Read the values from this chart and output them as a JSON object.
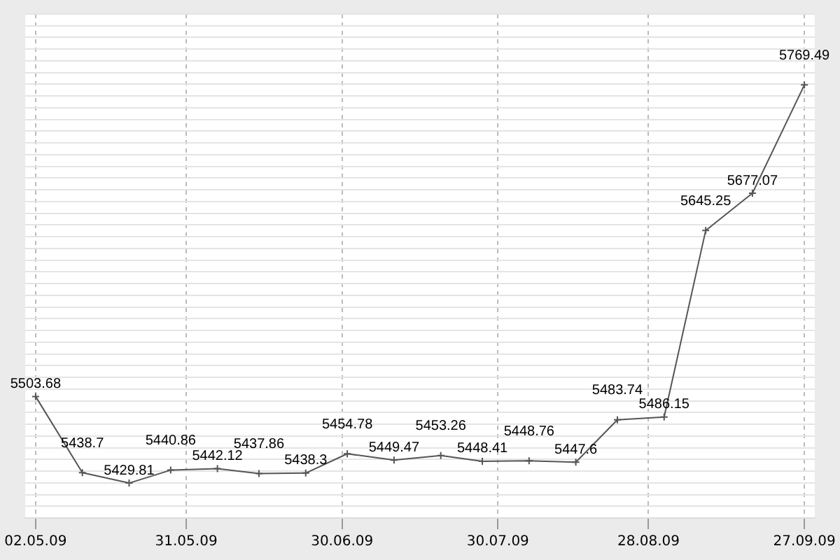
{
  "chart_data": {
    "type": "line",
    "x": [
      "2009-05-02",
      "2009-05-11",
      "2009-05-20",
      "2009-05-28",
      "2009-06-06",
      "2009-06-14",
      "2009-06-23",
      "2009-07-01",
      "2009-07-10",
      "2009-07-19",
      "2009-07-27",
      "2009-08-05",
      "2009-08-14",
      "2009-08-22",
      "2009-08-31",
      "2009-09-08",
      "2009-09-17",
      "2009-09-27"
    ],
    "series": [
      {
        "color": "#555555",
        "values": [
          5503.68,
          5438.7,
          5429.81,
          5440.86,
          5442.12,
          5437.86,
          5438.3,
          5454.78,
          5449.47,
          5453.26,
          5448.41,
          5448.76,
          5447.6,
          5483.74,
          5486.15,
          5645.25,
          5677.07,
          5769.49
        ]
      }
    ],
    "xlim": [
      "2009-04-30",
      "2009-09-29"
    ],
    "xticks": [
      {
        "value": "2009-05-02",
        "label": "02.05.09"
      },
      {
        "value": "2009-05-31",
        "label": "31.05.09"
      },
      {
        "value": "2009-06-30",
        "label": "30.06.09"
      },
      {
        "value": "2009-07-30",
        "label": "30.07.09"
      },
      {
        "value": "2009-08-28",
        "label": "28.08.09"
      },
      {
        "value": "2009-09-27",
        "label": "27.09.09"
      }
    ],
    "ylim": [
      5400,
      5830
    ],
    "yticks": [
      {
        "value": 5400,
        "label": null
      },
      {
        "value": 5410,
        "label": null
      },
      {
        "value": 5420,
        "label": null
      },
      {
        "value": 5430,
        "label": null
      },
      {
        "value": 5440,
        "label": null
      },
      {
        "value": 5450,
        "label": null
      },
      {
        "value": 5460,
        "label": null
      },
      {
        "value": 5470,
        "label": null
      },
      {
        "value": 5480,
        "label": null
      },
      {
        "value": 5490,
        "label": null
      },
      {
        "value": 5500,
        "label": null
      },
      {
        "value": 5510,
        "label": null
      },
      {
        "value": 5520,
        "label": null
      },
      {
        "value": 5530,
        "label": null
      },
      {
        "value": 5540,
        "label": null
      },
      {
        "value": 5550,
        "label": null
      },
      {
        "value": 5560,
        "label": null
      },
      {
        "value": 5570,
        "label": null
      },
      {
        "value": 5580,
        "label": null
      },
      {
        "value": 5590,
        "label": null
      },
      {
        "value": 5600,
        "label": null
      },
      {
        "value": 5610,
        "label": null
      },
      {
        "value": 5620,
        "label": null
      },
      {
        "value": 5630,
        "label": null
      },
      {
        "value": 5640,
        "label": null
      },
      {
        "value": 5650,
        "label": null
      },
      {
        "value": 5660,
        "label": null
      },
      {
        "value": 5670,
        "label": null
      },
      {
        "value": 5680,
        "label": null
      },
      {
        "value": 5690,
        "label": null
      },
      {
        "value": 5700,
        "label": null
      },
      {
        "value": 5710,
        "label": null
      },
      {
        "value": 5720,
        "label": null
      },
      {
        "value": 5730,
        "label": null
      },
      {
        "value": 5740,
        "label": null
      },
      {
        "value": 5750,
        "label": null
      },
      {
        "value": 5760,
        "label": null
      },
      {
        "value": 5770,
        "label": null
      },
      {
        "value": 5780,
        "label": null
      },
      {
        "value": 5790,
        "label": null
      },
      {
        "value": 5800,
        "label": null
      },
      {
        "value": 5810,
        "label": null
      },
      {
        "value": 5820,
        "label": null
      },
      {
        "value": 5830,
        "label": null
      }
    ],
    "tick_labels": "x",
    "grid": true,
    "data_labels": true,
    "marker": "cross",
    "line_style": "solid",
    "legend": false
  }
}
